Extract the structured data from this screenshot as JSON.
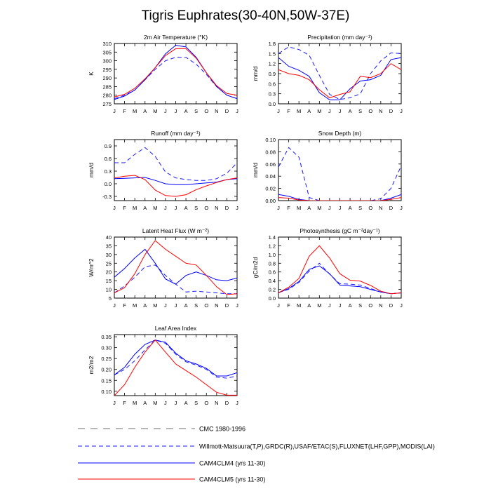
{
  "figure": {
    "title": "Tigris Euphrates(30-40N,50W-37E)",
    "legend": [
      {
        "label": "CMC 1980-1996",
        "color": "#6e6e6e",
        "dash": "long"
      },
      {
        "label": "Willmott-Matsuura(T,P),GRDC(R),USAF/ETAC(S),FLUXNET(LHF,GPP),MODIS(LAI)",
        "color": "#1a1aff",
        "dash": "dash"
      },
      {
        "label": "CAM4CLM4 (yrs 11-30)",
        "color": "#0000ff",
        "dash": "solid"
      },
      {
        "label": "CAM4CLM5 (yrs 11-30)",
        "color": "#ff0000",
        "dash": "solid"
      }
    ]
  },
  "chart_data": [
    {
      "type": "line",
      "title": "2m Air Temperature (°K)",
      "ylabel": "K",
      "categories": [
        "J",
        "F",
        "M",
        "A",
        "M",
        "J",
        "J",
        "A",
        "S",
        "O",
        "N",
        "D",
        "J"
      ],
      "ylim": [
        275,
        310
      ],
      "yticks": [
        275,
        280,
        285,
        290,
        295,
        300,
        305,
        310
      ],
      "yticklabels": [
        "275",
        "280",
        "285",
        "290",
        "295",
        "300",
        "305",
        "310"
      ],
      "series": [
        {
          "values": [
            278,
            280,
            283,
            289,
            295,
            300,
            302,
            302,
            298,
            292,
            285,
            280,
            278
          ],
          "color": "#1a1aff",
          "dash": "dash"
        },
        {
          "values": [
            277.5,
            279.5,
            283,
            289,
            296,
            304,
            309,
            308,
            302,
            293,
            285,
            280,
            278
          ],
          "color": "#0000ff",
          "dash": "solid"
        },
        {
          "values": [
            279,
            280.5,
            284,
            289.5,
            296,
            303,
            307,
            307,
            301.5,
            293,
            285.5,
            281,
            280
          ],
          "color": "#ff0000",
          "dash": "solid"
        }
      ]
    },
    {
      "type": "line",
      "title": "Precipitation (mm day⁻¹)",
      "ylabel": "mm/d",
      "categories": [
        "J",
        "F",
        "M",
        "A",
        "M",
        "J",
        "J",
        "A",
        "S",
        "O",
        "N",
        "D",
        "J"
      ],
      "ylim": [
        0,
        1.8
      ],
      "yticks": [
        0,
        0.3,
        0.6,
        0.9,
        1.2,
        1.5,
        1.8
      ],
      "yticklabels": [
        "0.0",
        "0.3",
        "0.6",
        "0.9",
        "1.2",
        "1.5",
        "1.8"
      ],
      "series": [
        {
          "values": [
            1.5,
            1.7,
            1.62,
            1.45,
            0.85,
            0.28,
            0.13,
            0.18,
            0.3,
            0.9,
            1.28,
            1.52,
            1.5
          ],
          "color": "#1a1aff",
          "dash": "dash"
        },
        {
          "values": [
            1.38,
            1.12,
            1.0,
            0.82,
            0.33,
            0.12,
            0.12,
            0.45,
            0.68,
            0.72,
            0.85,
            1.32,
            1.38
          ],
          "color": "#0000ff",
          "dash": "solid"
        },
        {
          "values": [
            1.02,
            0.9,
            0.85,
            0.72,
            0.42,
            0.18,
            0.28,
            0.36,
            0.82,
            0.78,
            0.9,
            1.2,
            1.02
          ],
          "color": "#ff0000",
          "dash": "solid"
        }
      ]
    },
    {
      "type": "line",
      "title": "Runoff (mm day⁻¹)",
      "ylabel": "mm/d",
      "categories": [
        "J",
        "F",
        "M",
        "A",
        "M",
        "J",
        "J",
        "A",
        "S",
        "O",
        "N",
        "D",
        "J"
      ],
      "ylim": [
        -0.4,
        1.05
      ],
      "yticks": [
        -0.3,
        0,
        0.3,
        0.6,
        0.9
      ],
      "yticklabels": [
        "-0.3",
        "0.0",
        "0.3",
        "0.6",
        "0.9"
      ],
      "series": [
        {
          "values": [
            0.5,
            0.5,
            0.7,
            0.86,
            0.65,
            0.28,
            0.14,
            0.1,
            0.08,
            0.08,
            0.12,
            0.25,
            0.5
          ],
          "color": "#1a1aff",
          "dash": "dash"
        },
        {
          "values": [
            0.12,
            0.13,
            0.14,
            0.15,
            0.08,
            0.0,
            -0.02,
            -0.02,
            0.0,
            0.02,
            0.04,
            0.1,
            0.12
          ],
          "color": "#0000ff",
          "dash": "solid"
        },
        {
          "values": [
            0.14,
            0.18,
            0.2,
            0.1,
            -0.15,
            -0.28,
            -0.3,
            -0.26,
            -0.14,
            -0.05,
            0.03,
            0.1,
            0.14
          ],
          "color": "#ff0000",
          "dash": "solid"
        }
      ]
    },
    {
      "type": "line",
      "title": "Snow Depth (m)",
      "ylabel": "mm/d",
      "categories": [
        "J",
        "F",
        "M",
        "A",
        "M",
        "J",
        "J",
        "A",
        "S",
        "O",
        "N",
        "D",
        "J"
      ],
      "ylim": [
        0,
        0.1
      ],
      "yticks": [
        0,
        0.02,
        0.04,
        0.06,
        0.08,
        0.1
      ],
      "yticklabels": [
        "0.00",
        "0.02",
        "0.04",
        "0.06",
        "0.08",
        "0.10"
      ],
      "series": [
        {
          "values": [
            0.055,
            0.087,
            0.071,
            0.005,
            0,
            0,
            0,
            0,
            0,
            0,
            0.003,
            0.02,
            0.057
          ],
          "color": "#1a1aff",
          "dash": "dash"
        },
        {
          "values": [
            0.01,
            0.007,
            0.002,
            0,
            0,
            0,
            0,
            0,
            0,
            0,
            0,
            0.004,
            0.01
          ],
          "color": "#0000ff",
          "dash": "solid"
        },
        {
          "values": [
            0.005,
            0.004,
            0.001,
            0,
            0,
            0,
            0,
            0,
            0,
            0,
            0,
            0.002,
            0.005
          ],
          "color": "#ff0000",
          "dash": "solid"
        }
      ]
    },
    {
      "type": "line",
      "title": "Latent Heat Flux (W m⁻²)",
      "ylabel": "W/m^2",
      "categories": [
        "J",
        "F",
        "M",
        "A",
        "M",
        "J",
        "J",
        "A",
        "S",
        "O",
        "N",
        "D",
        "J"
      ],
      "ylim": [
        5,
        40
      ],
      "yticks": [
        5,
        10,
        15,
        20,
        25,
        30,
        35,
        40
      ],
      "yticklabels": [
        "5",
        "10",
        "15",
        "20",
        "25",
        "30",
        "35",
        "40"
      ],
      "series": [
        {
          "values": [
            8,
            12,
            17,
            23,
            24,
            18,
            13,
            8.5,
            9,
            8.5,
            8,
            7.5,
            7.5
          ],
          "color": "#1a1aff",
          "dash": "dash"
        },
        {
          "values": [
            17,
            22,
            28,
            33,
            25,
            16,
            13,
            18,
            20,
            18,
            15.5,
            15,
            16.5
          ],
          "color": "#0000ff",
          "dash": "solid"
        },
        {
          "values": [
            8,
            11,
            19,
            30,
            38,
            33,
            29,
            25,
            24,
            18,
            11.5,
            7,
            7.5
          ],
          "color": "#ff0000",
          "dash": "solid"
        }
      ]
    },
    {
      "type": "line",
      "title": "Photosynthesis (gC m⁻²day⁻¹)",
      "ylabel": "gC/m2d",
      "categories": [
        "J",
        "F",
        "M",
        "A",
        "M",
        "J",
        "J",
        "A",
        "S",
        "O",
        "N",
        "D",
        "J"
      ],
      "ylim": [
        0,
        1.4
      ],
      "yticks": [
        0,
        0.2,
        0.4,
        0.6,
        0.8,
        1.0,
        1.2,
        1.4
      ],
      "yticklabels": [
        "0.0",
        "0.2",
        "0.4",
        "0.6",
        "0.8",
        "1.0",
        "1.2",
        "1.4"
      ],
      "series": [
        {
          "values": [
            0.13,
            0.2,
            0.36,
            0.62,
            0.8,
            0.55,
            0.33,
            0.32,
            0.3,
            0.22,
            0.14,
            0.1,
            0.12
          ],
          "color": "#1a1aff",
          "dash": "dash"
        },
        {
          "values": [
            0.12,
            0.22,
            0.38,
            0.66,
            0.74,
            0.56,
            0.3,
            0.28,
            0.26,
            0.2,
            0.14,
            0.1,
            0.12
          ],
          "color": "#0000ff",
          "dash": "solid"
        },
        {
          "values": [
            0.12,
            0.25,
            0.45,
            0.96,
            1.2,
            0.92,
            0.56,
            0.41,
            0.39,
            0.29,
            0.16,
            0.1,
            0.12
          ],
          "color": "#ff0000",
          "dash": "solid"
        }
      ]
    },
    {
      "type": "line",
      "title": "Leaf Area Index",
      "ylabel": "m2/m2",
      "categories": [
        "J",
        "F",
        "M",
        "A",
        "M",
        "J",
        "J",
        "A",
        "S",
        "O",
        "N",
        "D",
        "J"
      ],
      "ylim": [
        0.08,
        0.36
      ],
      "yticks": [
        0.1,
        0.15,
        0.2,
        0.25,
        0.3,
        0.35
      ],
      "yticklabels": [
        "0.10",
        "0.15",
        "0.20",
        "0.25",
        "0.30",
        "0.35"
      ],
      "series": [
        {
          "values": [
            0.175,
            0.2,
            0.24,
            0.29,
            0.335,
            0.32,
            0.27,
            0.235,
            0.22,
            0.2,
            0.165,
            0.16,
            0.17
          ],
          "color": "#1a1aff",
          "dash": "dash"
        },
        {
          "values": [
            0.175,
            0.21,
            0.27,
            0.315,
            0.335,
            0.325,
            0.275,
            0.24,
            0.225,
            0.205,
            0.17,
            0.17,
            0.185
          ],
          "color": "#0000ff",
          "dash": "solid"
        },
        {
          "values": [
            0.08,
            0.13,
            0.21,
            0.28,
            0.335,
            0.28,
            0.225,
            0.195,
            0.165,
            0.13,
            0.095,
            0.082,
            0.082
          ],
          "color": "#ff0000",
          "dash": "solid"
        }
      ]
    }
  ]
}
